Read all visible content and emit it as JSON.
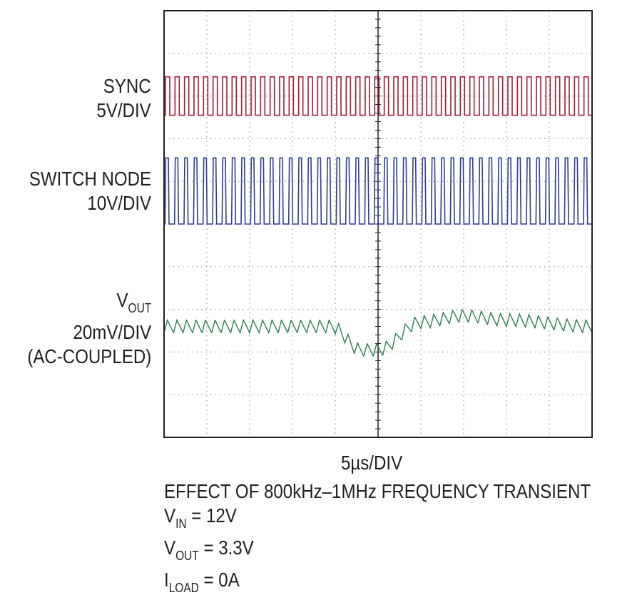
{
  "chart_data": {
    "type": "line",
    "title": "",
    "grid": true,
    "x_divisions": 10,
    "y_divisions": 10,
    "xlabel": "5µs/DIV",
    "series": [
      {
        "name": "SYNC",
        "scale": "5V/DIV",
        "color": "#9e1b32",
        "waveform": "square",
        "pulses": 45,
        "amplitude_div": 0.9
      },
      {
        "name": "SWITCH NODE",
        "scale": "10V/DIV",
        "color": "#2e3f96",
        "waveform": "pulse",
        "pulses": 45,
        "amplitude_div": 1.55
      },
      {
        "name_main": "V",
        "name_sub": "OUT",
        "scale": "20mV/DIV",
        "coupling": "(AC-COUPLED)",
        "color": "#2e7d4f",
        "waveform": "ripple",
        "ripple_cycles": 45,
        "ripple_div": 0.3,
        "transient_points": [
          [
            0,
            0
          ],
          [
            3.9,
            0
          ],
          [
            4.6,
            -0.55
          ],
          [
            5.0,
            -0.55
          ],
          [
            6.0,
            0.1
          ],
          [
            7.0,
            0.25
          ],
          [
            8.0,
            0.15
          ],
          [
            10.0,
            0
          ]
        ]
      }
    ]
  },
  "caption": {
    "line1": "EFFECT OF 800kHz–1MHz FREQUENCY TRANSIENT",
    "vin_main": "V",
    "vin_sub": "IN",
    "vin_value": " = 12V",
    "vout_main": "V",
    "vout_sub": "OUT",
    "vout_value": " = 3.3V",
    "iload_main": "I",
    "iload_sub": "LOAD",
    "iload_value": " = 0A"
  }
}
